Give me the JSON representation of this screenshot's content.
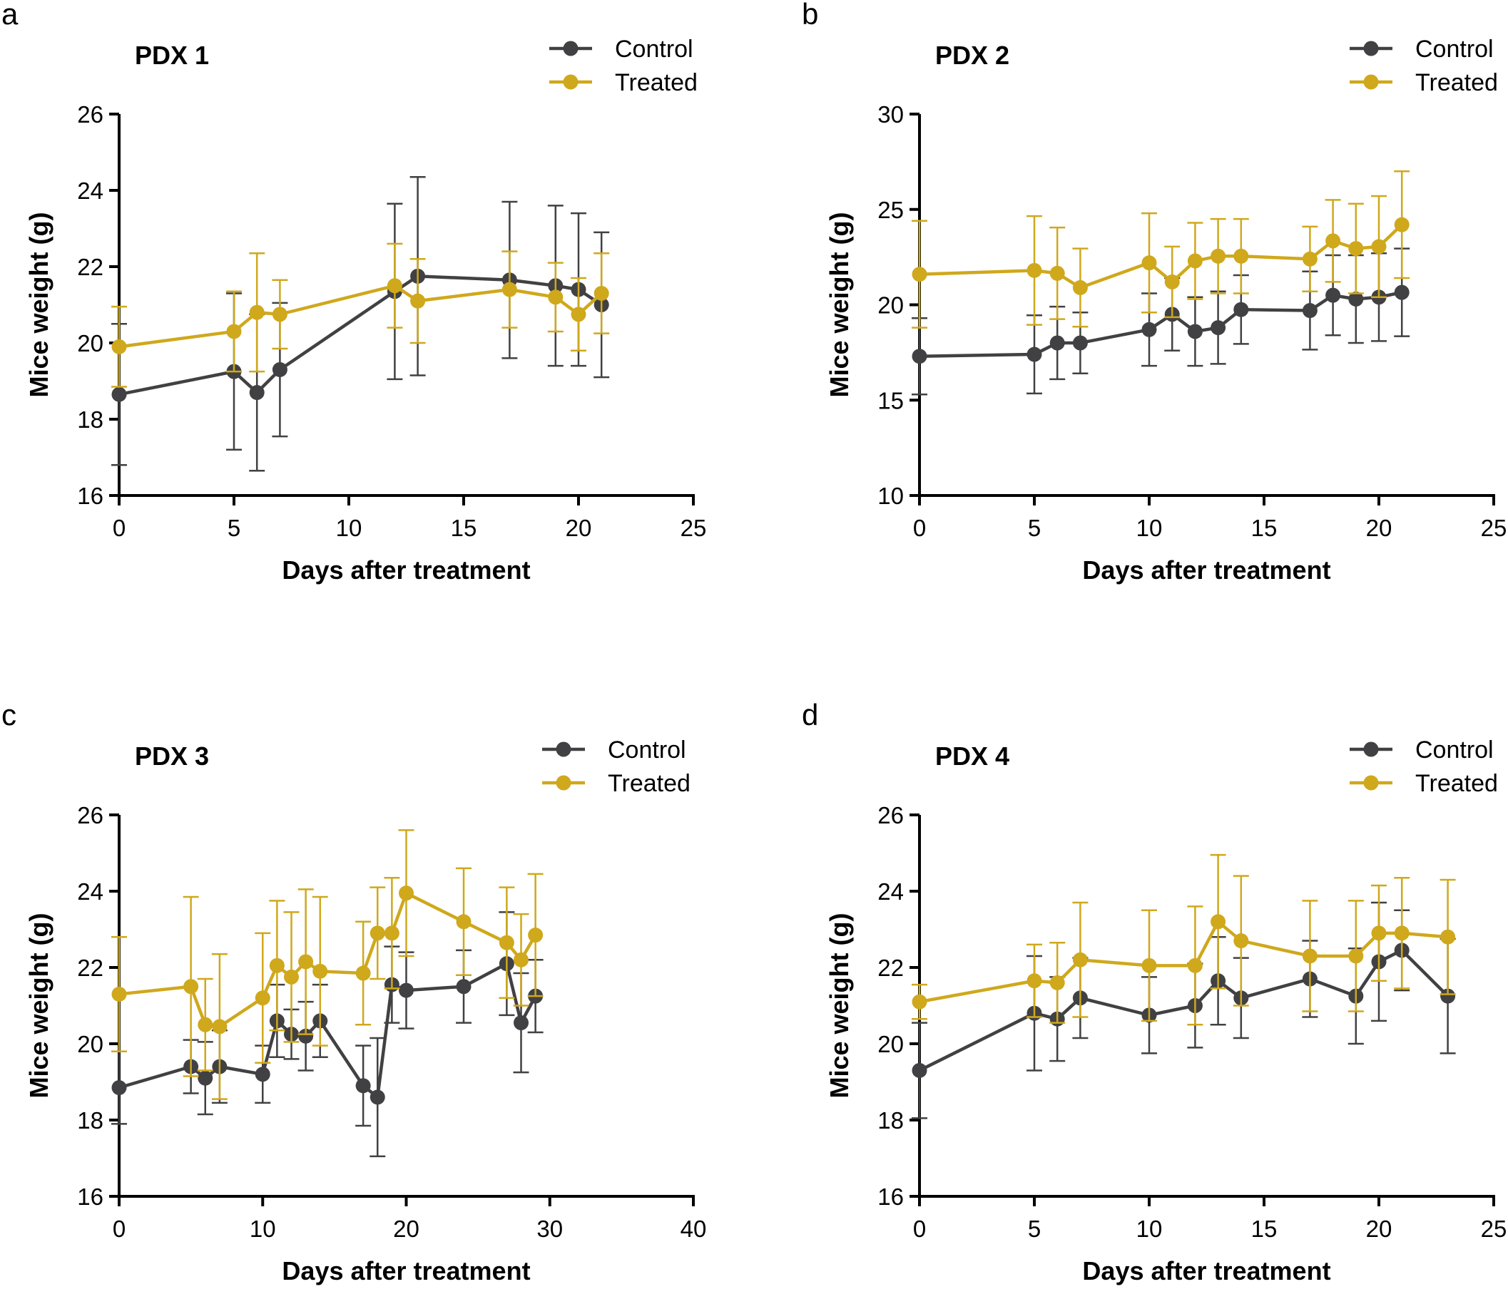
{
  "colors": {
    "control": "#414042",
    "treated": "#cfa81c"
  },
  "legend": {
    "control": "Control",
    "treated": "Treated"
  },
  "chart_data": [
    {
      "panel": "a",
      "type": "line",
      "title": "PDX 1",
      "xlabel": "Days after treatment",
      "ylabel": "Mice weight (g)",
      "xlim": [
        0,
        25
      ],
      "ylim": [
        16,
        26
      ],
      "xticks": [
        0,
        5,
        10,
        15,
        20,
        25
      ],
      "yticks": [
        16,
        18,
        20,
        22,
        24,
        26
      ],
      "series": [
        {
          "name": "Control",
          "x": [
            0,
            5,
            6,
            7,
            12,
            13,
            17,
            19,
            20,
            21
          ],
          "y": [
            18.65,
            19.25,
            18.7,
            19.3,
            21.35,
            21.75,
            21.65,
            21.5,
            21.4,
            21.0
          ],
          "err": [
            1.85,
            2.05,
            2.05,
            1.75,
            2.3,
            2.6,
            2.05,
            2.1,
            2.0,
            1.9
          ]
        },
        {
          "name": "Treated",
          "x": [
            0,
            5,
            6,
            7,
            12,
            13,
            17,
            19,
            20,
            21
          ],
          "y": [
            19.9,
            20.3,
            20.8,
            20.75,
            21.5,
            21.1,
            21.4,
            21.2,
            20.75,
            21.3
          ],
          "err": [
            1.05,
            1.05,
            1.55,
            0.9,
            1.1,
            1.1,
            1.0,
            0.9,
            0.95,
            1.05
          ]
        }
      ]
    },
    {
      "panel": "b",
      "type": "line",
      "title": "PDX 2",
      "xlabel": "Days after treatment",
      "ylabel": "Mice weight (g)",
      "xlim": [
        0,
        25
      ],
      "ylim": [
        10,
        30
      ],
      "xticks": [
        0,
        5,
        10,
        15,
        20,
        25
      ],
      "yticks": [
        10,
        15,
        20,
        25,
        30
      ],
      "series": [
        {
          "name": "Control",
          "x": [
            0,
            5,
            6,
            7,
            10,
            11,
            12,
            13,
            14,
            17,
            18,
            19,
            20,
            21
          ],
          "y": [
            17.3,
            17.4,
            18.0,
            18.0,
            18.7,
            19.5,
            18.6,
            18.8,
            19.75,
            19.7,
            20.5,
            20.3,
            20.4,
            20.65
          ],
          "err": [
            2.0,
            2.05,
            1.9,
            1.6,
            1.9,
            1.9,
            1.8,
            1.9,
            1.8,
            2.05,
            2.1,
            2.3,
            2.3,
            2.3
          ]
        },
        {
          "name": "Treated",
          "x": [
            0,
            5,
            6,
            7,
            10,
            11,
            12,
            13,
            14,
            17,
            18,
            19,
            20,
            21
          ],
          "y": [
            21.6,
            21.8,
            21.65,
            20.9,
            22.2,
            21.2,
            22.3,
            22.55,
            22.55,
            22.4,
            23.35,
            22.95,
            23.05,
            24.2
          ],
          "err": [
            2.8,
            2.85,
            2.4,
            2.05,
            2.6,
            1.85,
            2.0,
            1.95,
            1.95,
            1.7,
            2.15,
            2.35,
            2.65,
            2.8
          ]
        }
      ]
    },
    {
      "panel": "c",
      "type": "line",
      "title": "PDX 3",
      "xlabel": "Days after treatment",
      "ylabel": "Mice weight (g)",
      "xlim": [
        0,
        40
      ],
      "ylim": [
        16,
        26
      ],
      "xticks": [
        0,
        10,
        20,
        30,
        40
      ],
      "yticks": [
        16,
        18,
        20,
        22,
        24,
        26
      ],
      "series": [
        {
          "name": "Control",
          "x": [
            0,
            5,
            6,
            7,
            10,
            11,
            12,
            13,
            14,
            17,
            18,
            19,
            20,
            24,
            27,
            28,
            29
          ],
          "y": [
            18.85,
            19.4,
            19.1,
            19.4,
            19.2,
            20.6,
            20.25,
            20.2,
            20.6,
            18.9,
            18.6,
            21.55,
            21.4,
            21.5,
            22.1,
            20.55,
            21.25
          ],
          "err": [
            0.95,
            0.7,
            0.95,
            0.95,
            0.75,
            0.95,
            0.65,
            0.9,
            0.95,
            1.05,
            1.55,
            1.0,
            1.0,
            0.95,
            1.35,
            1.3,
            0.95
          ]
        },
        {
          "name": "Treated",
          "x": [
            0,
            5,
            6,
            7,
            10,
            11,
            12,
            13,
            14,
            17,
            18,
            19,
            20,
            24,
            27,
            28,
            29
          ],
          "y": [
            21.3,
            21.5,
            20.5,
            20.45,
            21.2,
            22.05,
            21.75,
            22.15,
            21.9,
            21.85,
            22.9,
            22.9,
            23.95,
            23.2,
            22.65,
            22.2,
            22.85
          ],
          "err": [
            1.5,
            2.35,
            1.2,
            1.9,
            1.7,
            1.7,
            1.7,
            1.9,
            1.95,
            1.35,
            1.2,
            1.45,
            1.65,
            1.4,
            1.45,
            1.2,
            1.6
          ]
        }
      ]
    },
    {
      "panel": "d",
      "type": "line",
      "title": "PDX 4",
      "xlabel": "Days after treatment",
      "ylabel": "Mice weight (g)",
      "xlim": [
        0,
        25
      ],
      "ylim": [
        16,
        26
      ],
      "xticks": [
        0,
        5,
        10,
        15,
        20,
        25
      ],
      "yticks": [
        16,
        18,
        20,
        22,
        24,
        26
      ],
      "series": [
        {
          "name": "Control",
          "x": [
            0,
            5,
            6,
            7,
            10,
            12,
            13,
            14,
            17,
            19,
            20,
            21,
            23
          ],
          "y": [
            19.3,
            20.8,
            20.65,
            21.2,
            20.75,
            21.0,
            21.65,
            21.2,
            21.7,
            21.25,
            22.15,
            22.45,
            21.25
          ],
          "err": [
            1.25,
            1.5,
            1.1,
            1.05,
            1.0,
            1.1,
            1.15,
            1.05,
            1.0,
            1.25,
            1.55,
            1.05,
            1.5
          ]
        },
        {
          "name": "Treated",
          "x": [
            0,
            5,
            6,
            7,
            10,
            12,
            13,
            14,
            17,
            19,
            20,
            21,
            23
          ],
          "y": [
            21.1,
            21.65,
            21.6,
            22.2,
            22.05,
            22.05,
            23.2,
            22.7,
            22.3,
            22.3,
            22.9,
            22.9,
            22.8
          ],
          "err": [
            0.45,
            0.95,
            1.05,
            1.5,
            1.45,
            1.55,
            1.75,
            1.7,
            1.45,
            1.45,
            1.25,
            1.45,
            1.5
          ]
        }
      ]
    }
  ]
}
